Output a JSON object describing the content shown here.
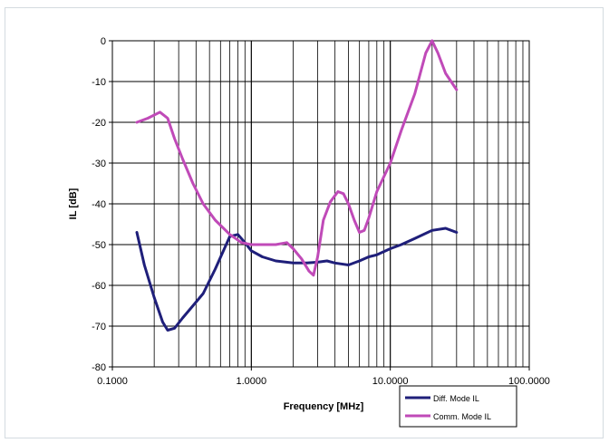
{
  "chart_data": {
    "type": "line",
    "title": "",
    "xlabel": "Frequency [MHz]",
    "ylabel": "IL [dB]",
    "x_scale": "log",
    "xlim": [
      0.1,
      100
    ],
    "ylim": [
      -80,
      0
    ],
    "grid": true,
    "legend_position": "bottom-right",
    "x_ticks": [
      "0.1000",
      "1.0000",
      "10.0000",
      "100.0000"
    ],
    "x_tick_values": [
      0.1,
      1,
      10,
      100
    ],
    "y_ticks": [
      "0",
      "-10",
      "-20",
      "-30",
      "-40",
      "-50",
      "-60",
      "-70",
      "-80"
    ],
    "y_tick_values": [
      0,
      -10,
      -20,
      -30,
      -40,
      -50,
      -60,
      -70,
      -80
    ],
    "series": [
      {
        "name": "Diff. Mode IL",
        "color": "#1f1f7a",
        "x": [
          0.15,
          0.17,
          0.2,
          0.23,
          0.25,
          0.28,
          0.32,
          0.38,
          0.45,
          0.55,
          0.7,
          0.8,
          0.9,
          1.0,
          1.2,
          1.5,
          2.0,
          2.5,
          3.0,
          3.5,
          4.0,
          5.0,
          6.0,
          7.0,
          8.0,
          10.0,
          12.0,
          15.0,
          20.0,
          25.0,
          30.0
        ],
        "y": [
          -47,
          -55,
          -63,
          -69,
          -71,
          -70.5,
          -68,
          -65,
          -62,
          -56,
          -48,
          -47.5,
          -49.5,
          -51.5,
          -53,
          -54,
          -54.5,
          -54.5,
          -54.3,
          -54,
          -54.5,
          -55,
          -54,
          -53,
          -52.5,
          -51,
          -50,
          -48.5,
          -46.5,
          -46,
          -47
        ]
      },
      {
        "name": "Comm. Mode IL",
        "color": "#c04ab8",
        "x": [
          0.15,
          0.18,
          0.22,
          0.25,
          0.28,
          0.32,
          0.38,
          0.45,
          0.55,
          0.7,
          0.85,
          1.0,
          1.2,
          1.5,
          1.8,
          2.0,
          2.3,
          2.6,
          2.8,
          3.0,
          3.3,
          3.7,
          4.2,
          4.6,
          5.0,
          5.5,
          6.0,
          6.5,
          7.0,
          8.0,
          10.0,
          12.0,
          15.0,
          18.0,
          20.0,
          22.0,
          25.0,
          30.0
        ],
        "y": [
          -20,
          -19,
          -17.5,
          -19,
          -24,
          -29,
          -35,
          -40,
          -44,
          -47.5,
          -49.5,
          -50,
          -50,
          -50,
          -49.5,
          -51,
          -53.5,
          -56.5,
          -57.5,
          -53,
          -44,
          -39.5,
          -37,
          -37.5,
          -40,
          -44,
          -47,
          -46.5,
          -43.5,
          -37,
          -30,
          -22,
          -13,
          -3,
          0,
          -3,
          -8,
          -12
        ]
      }
    ]
  }
}
